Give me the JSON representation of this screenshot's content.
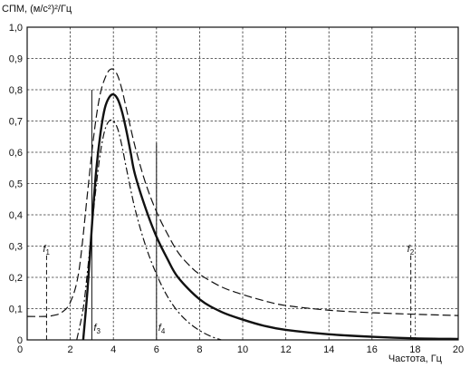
{
  "chart_data": {
    "type": "line",
    "ylabel": "СПМ, (м/с²)²/Гц",
    "xlabel": "Частота, Гц",
    "xlim": [
      0,
      20
    ],
    "ylim": [
      0,
      1.0
    ],
    "grid": true,
    "x_ticks": [
      "0",
      "2",
      "4",
      "6",
      "8",
      "10",
      "12",
      "14",
      "16",
      "18",
      "20"
    ],
    "y_ticks": [
      "0",
      "0,1",
      "0,2",
      "0,3",
      "0,4",
      "0,5",
      "0,6",
      "0,7",
      "0,8",
      "0,9",
      "1,0"
    ],
    "series": [
      {
        "style": "solid",
        "x": [
          2.6,
          2.8,
          3.0,
          3.2,
          3.4,
          3.6,
          3.8,
          4.0,
          4.2,
          4.4,
          4.6,
          4.8,
          5.0,
          5.5,
          6.0,
          6.5,
          7.0,
          8.0,
          9.0,
          10.0,
          11.0,
          12.0,
          14.0,
          16.0,
          18.0,
          20.0
        ],
        "y": [
          0.0,
          0.16,
          0.36,
          0.54,
          0.66,
          0.74,
          0.775,
          0.785,
          0.77,
          0.73,
          0.67,
          0.6,
          0.53,
          0.42,
          0.33,
          0.26,
          0.2,
          0.13,
          0.09,
          0.065,
          0.045,
          0.032,
          0.018,
          0.01,
          0.005,
          0.003
        ]
      },
      {
        "style": "long-dash",
        "x": [
          0.0,
          0.8,
          1.2,
          1.6,
          2.0,
          2.4,
          2.8,
          3.0,
          3.2,
          3.4,
          3.6,
          3.8,
          4.0,
          4.2,
          4.4,
          4.6,
          5.0,
          5.5,
          6.0,
          6.5,
          7.0,
          7.5,
          8.0,
          9.0,
          10.0,
          11.0,
          12.0,
          14.0,
          16.0,
          18.0,
          20.0
        ],
        "y": [
          0.075,
          0.075,
          0.078,
          0.088,
          0.12,
          0.22,
          0.47,
          0.6,
          0.71,
          0.79,
          0.835,
          0.862,
          0.865,
          0.845,
          0.8,
          0.74,
          0.62,
          0.5,
          0.41,
          0.34,
          0.28,
          0.24,
          0.21,
          0.17,
          0.145,
          0.125,
          0.11,
          0.095,
          0.087,
          0.082,
          0.078
        ]
      },
      {
        "style": "dash-dot",
        "x": [
          2.3,
          2.6,
          2.8,
          3.0,
          3.2,
          3.4,
          3.6,
          3.8,
          4.0,
          4.2,
          4.4,
          4.6,
          5.0,
          5.5,
          6.0,
          6.5,
          7.0,
          7.5,
          8.0,
          8.5,
          9.0
        ],
        "y": [
          0.0,
          0.1,
          0.22,
          0.36,
          0.49,
          0.6,
          0.67,
          0.7,
          0.7,
          0.675,
          0.62,
          0.55,
          0.42,
          0.3,
          0.21,
          0.14,
          0.09,
          0.055,
          0.03,
          0.012,
          0.0
        ]
      }
    ],
    "markers": [
      {
        "label": "f",
        "sub": "1",
        "x": 0.9,
        "y_top": 0.27,
        "style": "dashed",
        "label_pos": "top"
      },
      {
        "label": "f",
        "sub": "2",
        "x": 17.8,
        "y_top": 0.27,
        "style": "dashed",
        "label_pos": "top"
      },
      {
        "label": "f",
        "sub": "3",
        "x": 3.0,
        "y_top": 0.8,
        "style": "solid",
        "label_pos": "bottom"
      },
      {
        "label": "f",
        "sub": "4",
        "x": 6.0,
        "y_top": 0.63,
        "style": "solid",
        "label_pos": "bottom"
      }
    ]
  }
}
